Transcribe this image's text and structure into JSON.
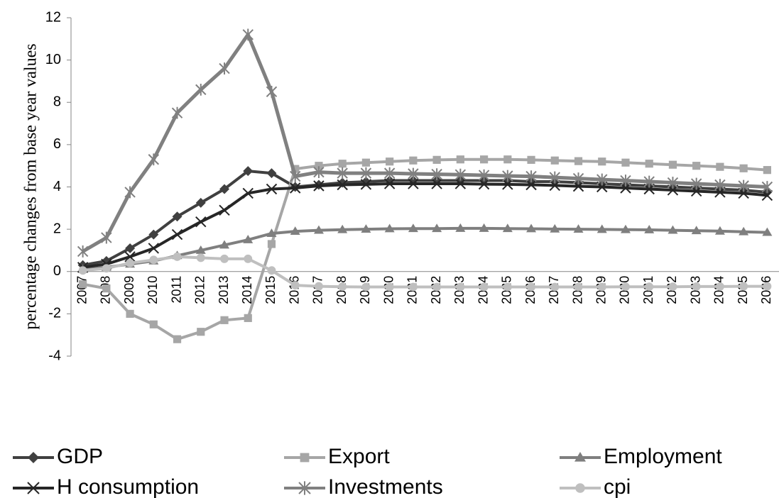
{
  "chart_data": {
    "type": "line",
    "y_label": "percentage changes from base year values",
    "categories": [
      "2007",
      "2008",
      "2009",
      "2010",
      "2011",
      "2012",
      "2013",
      "2014",
      "2015",
      "2016",
      "2017",
      "2018",
      "2019",
      "2020",
      "2021",
      "2022",
      "2023",
      "2024",
      "2025",
      "2026",
      "2027",
      "2028",
      "2029",
      "2030",
      "2031",
      "2032",
      "2033",
      "2034",
      "2035",
      "2036"
    ],
    "ylim": [
      -4,
      12
    ],
    "yticks": [
      -4,
      -2,
      0,
      2,
      4,
      6,
      8,
      10,
      12
    ],
    "series": [
      {
        "name": "GDP",
        "color": "#404040",
        "marker": "diamond",
        "values": [
          0.3,
          0.5,
          1.1,
          1.75,
          2.6,
          3.25,
          3.9,
          4.75,
          4.65,
          4.0,
          4.1,
          4.2,
          4.25,
          4.3,
          4.3,
          4.3,
          4.3,
          4.3,
          4.3,
          4.25,
          4.25,
          4.2,
          4.15,
          4.1,
          4.05,
          4.0,
          3.95,
          3.9,
          3.85,
          3.75
        ]
      },
      {
        "name": "Export",
        "color": "#a6a6a6",
        "marker": "square",
        "values": [
          -0.6,
          -0.8,
          -2.0,
          -2.5,
          -3.2,
          -2.85,
          -2.3,
          -2.2,
          1.3,
          4.85,
          5.0,
          5.1,
          5.15,
          5.2,
          5.25,
          5.28,
          5.3,
          5.3,
          5.3,
          5.28,
          5.25,
          5.22,
          5.2,
          5.15,
          5.1,
          5.05,
          5.0,
          4.95,
          4.88,
          4.8
        ]
      },
      {
        "name": "Employment",
        "color": "#7f7f7f",
        "marker": "triangle",
        "values": [
          0.1,
          0.2,
          0.35,
          0.5,
          0.75,
          1.0,
          1.25,
          1.5,
          1.8,
          1.9,
          1.95,
          1.98,
          2.0,
          2.02,
          2.03,
          2.03,
          2.04,
          2.04,
          2.03,
          2.02,
          2.01,
          2.0,
          1.99,
          1.98,
          1.97,
          1.95,
          1.93,
          1.91,
          1.88,
          1.85
        ]
      },
      {
        "name": "H consumption",
        "color": "#262626",
        "marker": "x",
        "values": [
          0.2,
          0.35,
          0.7,
          1.1,
          1.75,
          2.35,
          2.9,
          3.7,
          3.9,
          3.95,
          4.05,
          4.1,
          4.12,
          4.15,
          4.15,
          4.15,
          4.15,
          4.13,
          4.12,
          4.1,
          4.07,
          4.03,
          4.0,
          3.95,
          3.9,
          3.85,
          3.8,
          3.75,
          3.7,
          3.6
        ]
      },
      {
        "name": "Investments",
        "color": "#808080",
        "marker": "star",
        "values": [
          0.95,
          1.6,
          3.75,
          5.3,
          7.5,
          8.6,
          9.6,
          11.2,
          8.5,
          4.5,
          4.7,
          4.65,
          4.65,
          4.65,
          4.62,
          4.6,
          4.58,
          4.55,
          4.52,
          4.5,
          4.45,
          4.4,
          4.35,
          4.3,
          4.25,
          4.2,
          4.15,
          4.1,
          4.05,
          4.0
        ]
      },
      {
        "name": "cpi",
        "color": "#bfbfbf",
        "marker": "circle",
        "values": [
          0.05,
          0.15,
          0.4,
          0.55,
          0.7,
          0.65,
          0.6,
          0.6,
          0.05,
          -0.65,
          -0.7,
          -0.72,
          -0.73,
          -0.73,
          -0.73,
          -0.73,
          -0.73,
          -0.73,
          -0.73,
          -0.73,
          -0.73,
          -0.73,
          -0.73,
          -0.72,
          -0.72,
          -0.72,
          -0.71,
          -0.71,
          -0.7,
          -0.7
        ]
      }
    ]
  }
}
